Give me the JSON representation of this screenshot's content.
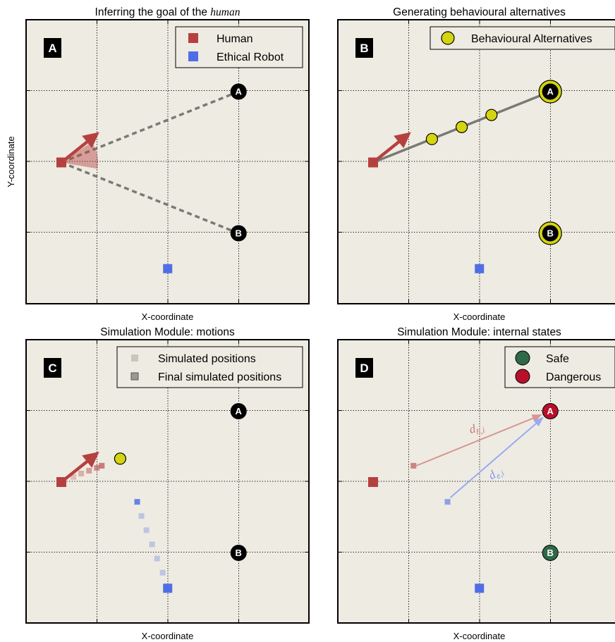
{
  "colors": {
    "panel_bg": "#eeebe3",
    "human": "#b5413f",
    "robot": "#4f6ee6",
    "alternative": "#d4d411",
    "safe": "#2f6947",
    "dangerous": "#b8102a",
    "node": "#000000",
    "path": "#7a7a74"
  },
  "chart_data": [
    {
      "type": "scatter",
      "panel": "A",
      "title_prefix": "Inferring the goal of the ",
      "title_italic": "human",
      "xlabel": "X-coordinate",
      "ylabel": "Y-coordinate",
      "grid": true,
      "legend_placement": "top-right",
      "legend": [
        "Human",
        "Ethical Robot"
      ],
      "human": [
        0,
        0
      ],
      "robot": [
        1.5,
        -1.5
      ],
      "goals": [
        {
          "label": "A",
          "x": 2.5,
          "y": 1
        },
        {
          "label": "B",
          "x": 2.5,
          "y": -1
        }
      ],
      "heading_arrow": {
        "from": [
          0,
          0
        ],
        "to": [
          0.5,
          0.4
        ]
      },
      "uncertainty_cone": true
    },
    {
      "type": "scatter",
      "panel": "B",
      "title": "Generating behavioural alternatives",
      "xlabel": "X-coordinate",
      "grid": true,
      "legend_placement": "top-right",
      "legend": [
        "Behavioural Alternatives"
      ],
      "human": [
        0,
        0
      ],
      "robot": [
        1.5,
        -1.5
      ],
      "goals": [
        {
          "label": "A",
          "x": 2.5,
          "y": 1
        },
        {
          "label": "B",
          "x": 2.5,
          "y": -1
        }
      ],
      "heading_arrow": {
        "from": [
          0,
          0
        ],
        "to": [
          0.5,
          0.4
        ]
      },
      "alternatives": [
        [
          0.83,
          0.33
        ],
        [
          1.25,
          0.5
        ],
        [
          1.67,
          0.67
        ]
      ]
    },
    {
      "type": "scatter",
      "panel": "C",
      "title": "Simulation Module: motions",
      "xlabel": "X-coordinate",
      "grid": true,
      "legend_placement": "top-right",
      "legend": [
        "Simulated positions",
        "Final simulated positions"
      ],
      "human": [
        0,
        0
      ],
      "robot": [
        1.5,
        -1.5
      ],
      "goals": [
        {
          "label": "A",
          "x": 2.5,
          "y": 1
        },
        {
          "label": "B",
          "x": 2.5,
          "y": -1
        }
      ],
      "heading_arrow": {
        "from": [
          0,
          0
        ],
        "to": [
          0.5,
          0.4
        ]
      },
      "alternative": [
        0.83,
        0.33
      ],
      "human_sim": [
        [
          0.17,
          0.07
        ],
        [
          0.28,
          0.12
        ],
        [
          0.39,
          0.16
        ],
        [
          0.5,
          0.2
        ],
        [
          0.57,
          0.23
        ]
      ],
      "robot_sim": [
        [
          1.07,
          -0.28
        ],
        [
          1.13,
          -0.48
        ],
        [
          1.2,
          -0.68
        ],
        [
          1.28,
          -0.88
        ],
        [
          1.35,
          -1.08
        ],
        [
          1.43,
          -1.28
        ]
      ]
    },
    {
      "type": "scatter",
      "panel": "D",
      "title": "Simulation Module: internal states",
      "xlabel": "X-coordinate",
      "grid": true,
      "legend_placement": "top-right",
      "legend": [
        "Safe",
        "Dangerous"
      ],
      "human": [
        0,
        0
      ],
      "robot": [
        1.5,
        -1.5
      ],
      "goals": [
        {
          "label": "A",
          "x": 2.5,
          "y": 1,
          "state": "Dangerous"
        },
        {
          "label": "B",
          "x": 2.5,
          "y": -1,
          "state": "Safe"
        }
      ],
      "human_final": [
        0.57,
        0.23
      ],
      "robot_final": [
        1.05,
        -0.28
      ],
      "distance_labels": [
        {
          "series": "human",
          "base": "d",
          "sub": "h,i"
        },
        {
          "series": "robot",
          "base": "d",
          "sub": "e,i"
        }
      ]
    }
  ]
}
